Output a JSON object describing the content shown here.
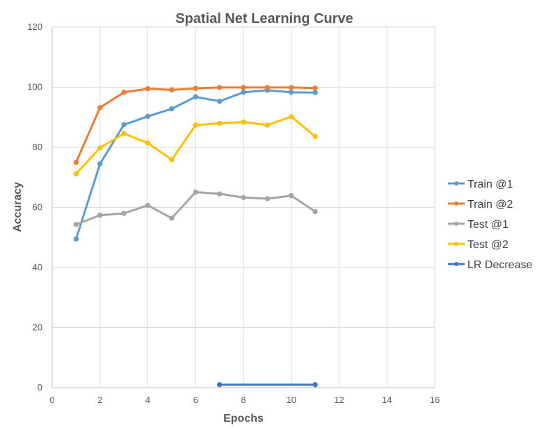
{
  "chart_data": {
    "type": "line",
    "title": "Spatial Net Learning Curve",
    "xlabel": "Epochs",
    "ylabel": "Accuracy",
    "xlim": [
      0,
      16
    ],
    "ylim": [
      0,
      120
    ],
    "x_ticks": [
      0,
      2,
      4,
      6,
      8,
      10,
      12,
      14,
      16
    ],
    "y_ticks": [
      0,
      20,
      40,
      60,
      80,
      100,
      120
    ],
    "grid": true,
    "legend_position": "right",
    "series": [
      {
        "name": "Train @1",
        "color": "#5b9bd5",
        "x": [
          1,
          2,
          3,
          4,
          5,
          6,
          7,
          8,
          9,
          10,
          11
        ],
        "y": [
          49.5,
          74.5,
          87.5,
          90.3,
          92.8,
          96.8,
          95.3,
          98.3,
          99.0,
          98.3,
          98.2
        ]
      },
      {
        "name": "Train @2",
        "color": "#ed7d31",
        "x": [
          1,
          2,
          3,
          4,
          5,
          6,
          7,
          8,
          9,
          10,
          11
        ],
        "y": [
          75.0,
          93.2,
          98.3,
          99.5,
          99.1,
          99.6,
          99.9,
          99.9,
          99.9,
          99.9,
          99.7
        ]
      },
      {
        "name": "Test @1",
        "color": "#a5a5a5",
        "x": [
          1,
          2,
          3,
          4,
          5,
          6,
          7,
          8,
          9,
          10,
          11
        ],
        "y": [
          54.3,
          57.4,
          58.0,
          60.7,
          56.4,
          65.1,
          64.5,
          63.3,
          62.9,
          63.9,
          58.6
        ]
      },
      {
        "name": "Test @2",
        "color": "#ffc000",
        "x": [
          1,
          2,
          3,
          4,
          5,
          6,
          7,
          8,
          9,
          10,
          11
        ],
        "y": [
          71.2,
          79.8,
          84.6,
          81.4,
          75.9,
          87.4,
          88.0,
          88.4,
          87.4,
          90.2,
          83.6
        ]
      },
      {
        "name": "LR Decrease",
        "color": "#4472c4",
        "x": [
          7,
          11
        ],
        "y": [
          1,
          1
        ]
      }
    ]
  }
}
